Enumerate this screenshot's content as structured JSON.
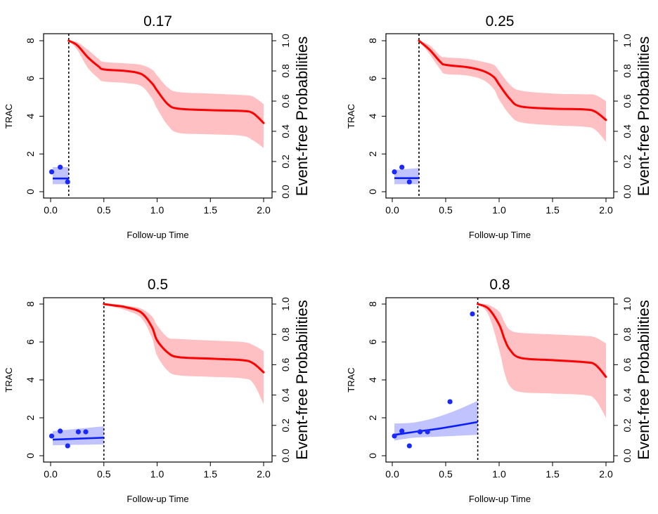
{
  "figure": {
    "colors": {
      "event_line": "#ff0000",
      "event_band": "#ffc0c3",
      "marker_line": "#0a1fff",
      "marker_band": "#c0c3ff",
      "marker_points": "#1a29ff",
      "axis": "#000000",
      "landmark_line": "#000000"
    }
  },
  "chart_data": [
    {
      "type": "line",
      "title": "0.17",
      "landmark_time": 0.17,
      "xlabel": "Follow-up Time",
      "ylabel_left": "TRAC",
      "ylabel_right": "Event-free Probabilities",
      "xlim": [
        0,
        2
      ],
      "ylim_left": [
        0,
        8
      ],
      "ylim_right": [
        0,
        1
      ],
      "x_ticks": [
        "0.0",
        "0.5",
        "1.0",
        "1.5",
        "2.0"
      ],
      "y_ticks_left": [
        "0",
        "2",
        "4",
        "6",
        "8"
      ],
      "y_ticks_right": [
        "0.0",
        "0.2",
        "0.4",
        "0.6",
        "0.8",
        "1.0"
      ],
      "marker_points": [
        [
          0.01,
          1.05
        ],
        [
          0.09,
          1.3
        ],
        [
          0.16,
          0.52
        ]
      ],
      "marker_fit": {
        "t": [
          0.02,
          0.17
        ],
        "value": [
          0.7,
          0.7
        ],
        "lower": [
          0.4,
          0.4
        ],
        "upper": [
          1.3,
          1.3
        ]
      },
      "event_free": {
        "t": [
          0.17,
          0.25,
          0.35,
          0.45,
          0.5,
          0.7,
          0.85,
          0.95,
          1.0,
          1.1,
          1.2,
          1.5,
          1.8,
          1.9,
          2.0
        ],
        "value": [
          1.0,
          0.97,
          0.89,
          0.83,
          0.81,
          0.8,
          0.78,
          0.72,
          0.67,
          0.58,
          0.55,
          0.54,
          0.535,
          0.52,
          0.455
        ],
        "lower": [
          1.0,
          0.94,
          0.82,
          0.75,
          0.73,
          0.72,
          0.7,
          0.62,
          0.55,
          0.44,
          0.39,
          0.38,
          0.37,
          0.34,
          0.29
        ],
        "upper": [
          1.0,
          0.99,
          0.94,
          0.88,
          0.86,
          0.85,
          0.84,
          0.81,
          0.77,
          0.69,
          0.66,
          0.65,
          0.64,
          0.63,
          0.58
        ]
      }
    },
    {
      "type": "line",
      "title": "0.25",
      "landmark_time": 0.25,
      "xlabel": "Follow-up Time",
      "ylabel_left": "TRAC",
      "ylabel_right": "Event-free Probabilities",
      "xlim": [
        0,
        2
      ],
      "ylim_left": [
        0,
        8
      ],
      "ylim_right": [
        0,
        1
      ],
      "x_ticks": [
        "0.0",
        "0.5",
        "1.0",
        "1.5",
        "2.0"
      ],
      "y_ticks_left": [
        "0",
        "2",
        "4",
        "6",
        "8"
      ],
      "y_ticks_right": [
        "0.0",
        "0.2",
        "0.4",
        "0.6",
        "0.8",
        "1.0"
      ],
      "marker_points": [
        [
          0.02,
          1.05
        ],
        [
          0.09,
          1.3
        ],
        [
          0.16,
          0.52
        ]
      ],
      "marker_fit": {
        "t": [
          0.02,
          0.25
        ],
        "value": [
          0.72,
          0.72
        ],
        "lower": [
          0.4,
          0.4
        ],
        "upper": [
          1.15,
          1.25
        ]
      },
      "event_free": {
        "t": [
          0.25,
          0.35,
          0.45,
          0.5,
          0.7,
          0.85,
          0.95,
          1.0,
          1.1,
          1.2,
          1.5,
          1.8,
          1.9,
          2.0
        ],
        "value": [
          1.0,
          0.94,
          0.86,
          0.84,
          0.825,
          0.8,
          0.76,
          0.71,
          0.615,
          0.565,
          0.55,
          0.545,
          0.53,
          0.475
        ],
        "lower": [
          1.0,
          0.91,
          0.81,
          0.78,
          0.77,
          0.74,
          0.68,
          0.61,
          0.51,
          0.46,
          0.44,
          0.43,
          0.41,
          0.33
        ],
        "upper": [
          1.0,
          0.97,
          0.9,
          0.89,
          0.88,
          0.86,
          0.84,
          0.8,
          0.71,
          0.67,
          0.65,
          0.645,
          0.64,
          0.6
        ]
      }
    },
    {
      "type": "line",
      "title": "0.5",
      "landmark_time": 0.5,
      "xlabel": "Follow-up Time",
      "ylabel_left": "TRAC",
      "ylabel_right": "Event-free Probabilities",
      "xlim": [
        0,
        2
      ],
      "ylim_left": [
        0,
        8
      ],
      "ylim_right": [
        0,
        1
      ],
      "x_ticks": [
        "0.0",
        "0.5",
        "1.0",
        "1.5",
        "2.0"
      ],
      "y_ticks_left": [
        "0",
        "2",
        "4",
        "6",
        "8"
      ],
      "y_ticks_right": [
        "0.0",
        "0.2",
        "0.4",
        "0.6",
        "0.8",
        "1.0"
      ],
      "marker_points": [
        [
          0.01,
          1.04
        ],
        [
          0.09,
          1.3
        ],
        [
          0.16,
          0.52
        ],
        [
          0.26,
          1.26
        ],
        [
          0.33,
          1.26
        ]
      ],
      "marker_fit": {
        "t": [
          0.02,
          0.5
        ],
        "value": [
          0.85,
          0.95
        ],
        "lower": [
          0.55,
          0.6
        ],
        "upper": [
          1.3,
          1.55
        ]
      },
      "event_free": {
        "t": [
          0.5,
          0.6,
          0.7,
          0.85,
          0.95,
          1.0,
          1.1,
          1.2,
          1.5,
          1.8,
          1.9,
          2.0
        ],
        "value": [
          1.0,
          0.99,
          0.98,
          0.945,
          0.85,
          0.76,
          0.68,
          0.65,
          0.64,
          0.63,
          0.61,
          0.55
        ],
        "lower": [
          1.0,
          0.98,
          0.96,
          0.91,
          0.78,
          0.66,
          0.56,
          0.53,
          0.52,
          0.51,
          0.48,
          0.34
        ],
        "upper": [
          1.0,
          1.0,
          0.99,
          0.97,
          0.92,
          0.86,
          0.78,
          0.77,
          0.76,
          0.75,
          0.73,
          0.69
        ]
      }
    },
    {
      "type": "line",
      "title": "0.8",
      "landmark_time": 0.8,
      "xlabel": "Follow-up Time",
      "ylabel_left": "TRAC",
      "ylabel_right": "Event-free Probabilities",
      "xlim": [
        0,
        2
      ],
      "ylim_left": [
        0,
        8
      ],
      "ylim_right": [
        0,
        1
      ],
      "x_ticks": [
        "0.0",
        "0.5",
        "1.0",
        "1.5",
        "2.0"
      ],
      "y_ticks_left": [
        "0",
        "2",
        "4",
        "6",
        "8"
      ],
      "y_ticks_right": [
        "0.0",
        "0.2",
        "0.4",
        "0.6",
        "0.8",
        "1.0"
      ],
      "marker_points": [
        [
          0.02,
          1.04
        ],
        [
          0.09,
          1.3
        ],
        [
          0.16,
          0.52
        ],
        [
          0.26,
          1.26
        ],
        [
          0.33,
          1.26
        ],
        [
          0.54,
          2.85
        ],
        [
          0.75,
          7.48
        ]
      ],
      "marker_fit": {
        "t": [
          0.02,
          0.2,
          0.4,
          0.6,
          0.8
        ],
        "value": [
          1.1,
          1.25,
          1.4,
          1.58,
          1.78
        ],
        "lower": [
          0.8,
          0.95,
          1.0,
          1.05,
          1.1
        ],
        "upper": [
          1.7,
          1.75,
          2.0,
          2.4,
          2.9
        ]
      },
      "event_free": {
        "t": [
          0.8,
          0.9,
          1.0,
          1.05,
          1.1,
          1.2,
          1.5,
          1.8,
          1.9,
          2.0
        ],
        "value": [
          1.0,
          0.97,
          0.865,
          0.77,
          0.7,
          0.645,
          0.63,
          0.617,
          0.6,
          0.52
        ],
        "lower": [
          1.0,
          0.93,
          0.7,
          0.55,
          0.46,
          0.42,
          0.41,
          0.4,
          0.37,
          0.25
        ],
        "upper": [
          1.0,
          0.995,
          0.95,
          0.88,
          0.83,
          0.81,
          0.8,
          0.79,
          0.78,
          0.74
        ]
      }
    }
  ]
}
